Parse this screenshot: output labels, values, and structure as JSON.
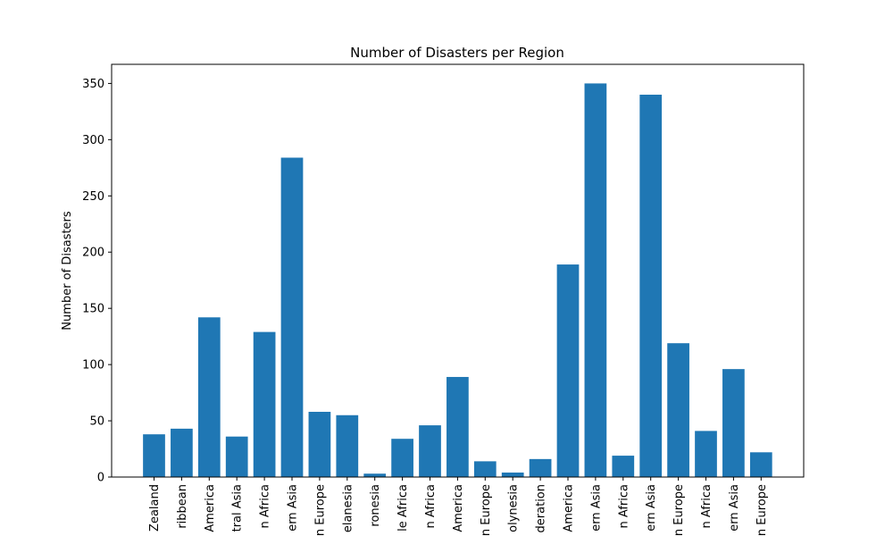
{
  "chart_data": {
    "type": "bar",
    "title": "Number of Disasters per Region",
    "xlabel": "",
    "ylabel": "Number of Disasters",
    "ylim": [
      0,
      367
    ],
    "yticks": [
      0,
      50,
      100,
      150,
      200,
      250,
      300,
      350
    ],
    "bar_color": "#1f77b4",
    "grid": false,
    "categories": [
      "Zealand",
      "ribbean",
      "America",
      "tral Asia",
      "n Africa",
      "ern Asia",
      "n Europe",
      "elanesia",
      "ronesia",
      "le Africa",
      "n Africa",
      "America",
      "n Europe",
      "olynesia",
      "deration",
      "America",
      "ern Asia",
      "n Africa",
      "ern Asia",
      "n Europe",
      "n Africa",
      "ern Asia",
      "n Europe"
    ],
    "values": [
      38,
      43,
      142,
      36,
      129,
      284,
      58,
      55,
      3,
      34,
      46,
      89,
      14,
      4,
      16,
      189,
      350,
      19,
      340,
      119,
      41,
      96,
      22
    ]
  }
}
